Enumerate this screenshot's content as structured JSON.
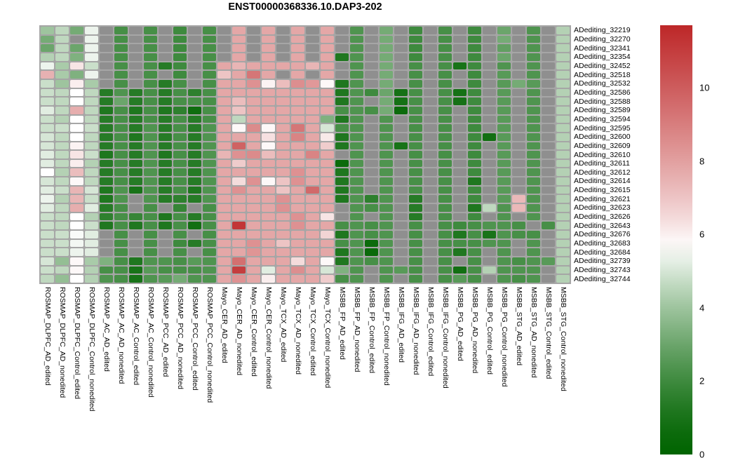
{
  "chart_data": {
    "type": "heatmap",
    "title": "ENST00000368336.10.DAP3-202",
    "rows": [
      "ADediting_32219",
      "ADediting_32270",
      "ADediting_32341",
      "ADediting_32354",
      "ADediting_32452",
      "ADediting_32518",
      "ADediting_32532",
      "ADediting_32586",
      "ADediting_32588",
      "ADediting_32589",
      "ADediting_32594",
      "ADediting_32595",
      "ADediting_32600",
      "ADediting_32609",
      "ADediting_32610",
      "ADediting_32611",
      "ADediting_32612",
      "ADediting_32614",
      "ADediting_32615",
      "ADediting_32621",
      "ADediting_32623",
      "ADediting_32626",
      "ADediting_32643",
      "ADediting_32676",
      "ADediting_32683",
      "ADediting_32684",
      "ADediting_32739",
      "ADediting_32743",
      "ADediting_32744"
    ],
    "columns": [
      "ROSMAP_DLPFC_AD_edited",
      "ROSMAP_DLPFC_AD_nonedited",
      "ROSMAP_DLPFC_Control_edited",
      "ROSMAP_DLPFC_Control_nonedited",
      "ROSMAP_AC_AD_edited",
      "ROSMAP_AC_AD_nonedited",
      "ROSMAP_AC_Control_edited",
      "ROSMAP_AC_Control_nonedited",
      "ROSMAP_PCC_AD_edited",
      "ROSMAP_PCC_AD_nonedited",
      "ROSMAP_PCC_Control_edited",
      "ROSMAP_PCC_Control_nonedited",
      "Mayo_CER_AD_edited",
      "Mayo_CER_AD_nonedited",
      "Mayo_CER_Control_edited",
      "Mayo_CER_Control_nonedited",
      "Mayo_TCX_AD_edited",
      "Mayo_TCX_AD_nonedited",
      "Mayo_TCX_Control_edited",
      "Mayo_TCX_Control_nonedited",
      "MSBB_FP_AD_edited",
      "MSBB_FP_AD_nonedited",
      "MSBB_FP_Control_edited",
      "MSBB_FP_Control_nonedited",
      "MSBB_IFG_AD_edited",
      "MSBB_IFG_AD_nonedited",
      "MSBB_IFG_Control_edited",
      "MSBB_IFG_Control_nonedited",
      "MSBB_PG_AD_edited",
      "MSBB_PG_AD_nonedited",
      "MSBB_PG_Control_edited",
      "MSBB_PG_Control_nonedited",
      "MSBB_STG_AD_edited",
      "MSBB_STG_AD_nonedited",
      "MSBB_STG_Control_edited",
      "MSBB_STG_Control_nonedited"
    ],
    "values": [
      [
        4.0,
        4.6,
        3.2,
        5.4,
        null,
        2.2,
        null,
        2.2,
        null,
        2.0,
        null,
        2.2,
        null,
        7.8,
        null,
        7.8,
        null,
        7.8,
        null,
        7.8,
        null,
        2.4,
        null,
        3.2,
        null,
        2.0,
        null,
        2.2,
        null,
        2.0,
        null,
        3.0,
        null,
        2.4,
        null,
        4.4
      ],
      [
        3.2,
        4.6,
        null,
        5.4,
        null,
        2.2,
        null,
        2.2,
        null,
        2.0,
        null,
        2.2,
        null,
        7.8,
        null,
        7.8,
        null,
        7.8,
        null,
        7.8,
        null,
        2.4,
        null,
        3.2,
        null,
        2.0,
        null,
        2.2,
        null,
        2.0,
        null,
        3.2,
        null,
        2.4,
        null,
        4.4
      ],
      [
        3.0,
        4.6,
        3.0,
        5.4,
        null,
        2.2,
        null,
        2.2,
        null,
        2.0,
        null,
        2.2,
        null,
        7.8,
        null,
        7.8,
        null,
        7.8,
        null,
        7.8,
        null,
        2.4,
        null,
        3.2,
        null,
        2.0,
        null,
        2.2,
        null,
        2.0,
        null,
        2.8,
        null,
        2.4,
        null,
        4.4
      ],
      [
        4.4,
        4.6,
        3.4,
        5.4,
        null,
        2.2,
        null,
        2.2,
        null,
        2.0,
        null,
        2.2,
        null,
        7.8,
        null,
        7.8,
        null,
        7.8,
        null,
        7.8,
        1.2,
        2.4,
        null,
        3.2,
        null,
        2.0,
        null,
        2.2,
        null,
        2.0,
        null,
        3.0,
        null,
        2.4,
        null,
        4.4
      ],
      [
        5.4,
        4.2,
        6.2,
        4.8,
        null,
        2.2,
        null,
        2.2,
        1.4,
        2.0,
        null,
        2.2,
        7.8,
        7.4,
        7.8,
        7.8,
        7.8,
        7.8,
        7.4,
        7.8,
        null,
        2.4,
        null,
        3.2,
        null,
        2.2,
        null,
        2.2,
        1.0,
        2.0,
        null,
        2.4,
        null,
        2.4,
        null,
        4.4
      ],
      [
        7.5,
        4.2,
        3.4,
        5.4,
        null,
        2.2,
        null,
        2.2,
        null,
        2.0,
        null,
        2.2,
        7.0,
        7.8,
        9.2,
        7.8,
        null,
        7.8,
        null,
        7.8,
        null,
        2.4,
        null,
        3.2,
        null,
        2.2,
        null,
        2.2,
        null,
        2.0,
        null,
        2.6,
        null,
        2.4,
        null,
        4.4
      ],
      [
        4.8,
        4.0,
        6.0,
        4.2,
        null,
        2.2,
        null,
        2.2,
        1.4,
        2.2,
        null,
        2.2,
        7.8,
        7.8,
        8.4,
        5.9,
        7.2,
        8.5,
        8.2,
        5.8,
        1.2,
        2.4,
        null,
        3.2,
        null,
        2.2,
        null,
        2.2,
        null,
        2.0,
        null,
        2.6,
        3.2,
        2.6,
        null,
        4.4
      ],
      [
        4.8,
        4.6,
        5.7,
        4.6,
        1.4,
        2.4,
        1.4,
        2.2,
        1.4,
        2.2,
        1.6,
        2.2,
        7.8,
        7.8,
        7.8,
        7.8,
        7.8,
        7.8,
        7.8,
        7.8,
        1.2,
        2.4,
        2.0,
        3.0,
        0.9,
        2.2,
        null,
        2.2,
        0.9,
        2.0,
        null,
        2.6,
        null,
        2.4,
        null,
        4.4
      ],
      [
        4.8,
        4.6,
        5.7,
        4.6,
        1.4,
        3.0,
        1.4,
        2.2,
        1.4,
        2.2,
        2.2,
        2.2,
        7.8,
        7.2,
        7.8,
        7.8,
        7.8,
        7.8,
        7.8,
        7.8,
        1.2,
        2.4,
        null,
        3.2,
        0.9,
        2.2,
        null,
        2.2,
        0.9,
        2.0,
        null,
        2.6,
        null,
        2.4,
        null,
        4.4
      ],
      [
        5.2,
        4.6,
        7.6,
        4.6,
        1.2,
        2.2,
        1.2,
        2.2,
        1.2,
        1.6,
        0.7,
        2.2,
        7.8,
        7.0,
        7.8,
        7.8,
        7.8,
        7.8,
        7.8,
        7.8,
        2.2,
        2.4,
        2.2,
        3.2,
        0.6,
        2.2,
        null,
        2.2,
        null,
        2.0,
        null,
        2.6,
        null,
        2.4,
        null,
        4.4
      ],
      [
        4.8,
        4.4,
        5.7,
        4.6,
        1.4,
        2.2,
        1.4,
        2.2,
        1.4,
        2.2,
        1.4,
        2.2,
        7.8,
        4.6,
        7.8,
        7.8,
        7.8,
        7.8,
        7.8,
        3.4,
        1.2,
        2.4,
        null,
        2.4,
        null,
        2.2,
        null,
        2.2,
        null,
        2.0,
        null,
        2.6,
        null,
        2.4,
        null,
        4.4
      ],
      [
        4.8,
        4.8,
        5.7,
        4.8,
        1.4,
        2.2,
        1.4,
        2.4,
        1.4,
        2.2,
        1.4,
        2.4,
        7.8,
        5.8,
        8.6,
        5.8,
        7.8,
        9.2,
        7.8,
        5.0,
        2.2,
        2.4,
        null,
        2.4,
        null,
        2.2,
        null,
        2.2,
        null,
        2.0,
        null,
        2.6,
        null,
        2.4,
        null,
        4.4
      ],
      [
        5.0,
        4.6,
        5.7,
        4.6,
        1.4,
        2.2,
        1.2,
        2.4,
        1.4,
        2.2,
        1.4,
        2.4,
        7.8,
        7.8,
        7.8,
        6.3,
        7.8,
        8.8,
        7.8,
        6.1,
        1.2,
        2.4,
        null,
        2.4,
        null,
        2.2,
        null,
        2.2,
        null,
        2.0,
        0.8,
        2.6,
        null,
        2.4,
        null,
        4.4
      ],
      [
        5.0,
        4.6,
        5.9,
        4.6,
        1.4,
        2.2,
        1.4,
        2.4,
        1.4,
        2.2,
        1.4,
        2.4,
        7.8,
        9.8,
        7.8,
        5.8,
        7.8,
        7.8,
        7.8,
        6.8,
        1.2,
        2.4,
        null,
        2.4,
        1.0,
        2.2,
        null,
        2.2,
        null,
        2.0,
        null,
        2.6,
        null,
        2.4,
        null,
        4.4
      ],
      [
        5.2,
        4.6,
        6.2,
        4.8,
        1.2,
        2.2,
        1.4,
        2.4,
        1.2,
        2.2,
        1.4,
        2.4,
        7.4,
        8.4,
        8.6,
        7.2,
        7.8,
        7.8,
        8.8,
        7.8,
        null,
        2.4,
        null,
        2.4,
        null,
        2.2,
        null,
        2.2,
        null,
        2.0,
        null,
        2.6,
        null,
        2.4,
        null,
        4.4
      ],
      [
        5.2,
        4.6,
        6.0,
        4.4,
        1.4,
        2.2,
        1.4,
        2.4,
        1.4,
        2.2,
        1.4,
        2.4,
        7.8,
        6.8,
        7.8,
        7.8,
        7.8,
        7.8,
        7.8,
        7.8,
        0.6,
        2.4,
        null,
        2.4,
        null,
        2.2,
        null,
        2.2,
        null,
        2.0,
        null,
        2.6,
        null,
        2.4,
        null,
        4.4
      ],
      [
        5.7,
        4.4,
        7.2,
        4.6,
        1.4,
        2.2,
        1.4,
        2.4,
        1.4,
        2.2,
        1.4,
        2.4,
        7.8,
        7.8,
        7.8,
        7.8,
        7.8,
        8.4,
        7.8,
        7.8,
        1.2,
        2.4,
        null,
        2.4,
        null,
        2.2,
        null,
        2.2,
        null,
        2.0,
        null,
        2.6,
        null,
        2.4,
        null,
        4.4
      ],
      [
        5.0,
        4.6,
        5.8,
        4.6,
        1.4,
        2.2,
        1.4,
        2.4,
        1.4,
        2.2,
        1.4,
        2.4,
        7.8,
        6.4,
        8.4,
        5.8,
        7.0,
        8.4,
        7.8,
        7.8,
        1.2,
        2.4,
        null,
        2.4,
        null,
        2.2,
        null,
        2.2,
        null,
        1.2,
        null,
        2.6,
        null,
        2.4,
        null,
        4.4
      ],
      [
        5.2,
        4.8,
        7.4,
        5.0,
        1.2,
        2.4,
        1.0,
        2.4,
        1.4,
        2.2,
        1.2,
        2.4,
        7.8,
        8.4,
        7.8,
        7.8,
        7.0,
        7.8,
        9.6,
        7.8,
        1.2,
        2.4,
        null,
        2.4,
        null,
        2.2,
        null,
        2.2,
        null,
        2.0,
        null,
        2.6,
        null,
        2.4,
        null,
        4.4
      ],
      [
        5.4,
        4.4,
        7.4,
        4.8,
        1.2,
        2.4,
        null,
        2.4,
        1.4,
        1.6,
        1.4,
        2.4,
        7.8,
        7.8,
        7.8,
        7.8,
        8.4,
        7.8,
        7.8,
        7.8,
        1.2,
        2.4,
        1.6,
        2.4,
        null,
        1.4,
        null,
        2.2,
        null,
        2.0,
        null,
        2.6,
        7.3,
        2.4,
        null,
        4.4
      ],
      [
        5.2,
        4.6,
        7.6,
        5.2,
        1.4,
        2.2,
        null,
        2.2,
        null,
        1.8,
        null,
        2.2,
        7.8,
        7.8,
        7.8,
        7.8,
        8.4,
        7.8,
        7.8,
        7.8,
        null,
        2.4,
        2.2,
        2.4,
        null,
        1.4,
        null,
        2.2,
        null,
        1.2,
        4.6,
        2.4,
        7.3,
        2.4,
        null,
        4.4
      ],
      [
        4.8,
        4.6,
        5.7,
        4.4,
        1.6,
        2.2,
        1.8,
        2.2,
        1.2,
        2.2,
        1.4,
        2.2,
        7.8,
        7.8,
        7.8,
        7.8,
        7.8,
        8.4,
        7.8,
        6.2,
        null,
        2.4,
        null,
        2.4,
        null,
        1.4,
        null,
        2.2,
        null,
        2.0,
        null,
        2.4,
        null,
        2.4,
        null,
        4.4
      ],
      [
        4.8,
        4.6,
        5.7,
        4.8,
        1.2,
        2.2,
        1.2,
        2.2,
        1.2,
        2.2,
        0.8,
        2.2,
        7.8,
        11.2,
        7.8,
        7.8,
        7.8,
        8.4,
        7.8,
        7.8,
        2.2,
        2.4,
        2.2,
        2.4,
        null,
        2.2,
        null,
        2.2,
        2.0,
        2.2,
        2.4,
        2.4,
        2.2,
        null,
        2.2,
        4.4
      ],
      [
        4.8,
        4.8,
        5.6,
        5.2,
        null,
        2.2,
        null,
        2.2,
        null,
        2.2,
        null,
        2.2,
        7.8,
        7.8,
        7.8,
        7.8,
        7.8,
        7.8,
        7.8,
        6.6,
        1.2,
        2.4,
        2.2,
        2.4,
        null,
        2.2,
        null,
        2.2,
        1.2,
        2.2,
        1.0,
        2.4,
        2.2,
        2.2,
        null,
        4.4
      ],
      [
        4.8,
        4.8,
        5.5,
        5.2,
        null,
        2.2,
        null,
        2.2,
        null,
        2.0,
        1.4,
        2.2,
        7.8,
        7.8,
        8.4,
        7.8,
        7.0,
        7.8,
        7.8,
        7.8,
        2.2,
        2.4,
        0.6,
        2.4,
        null,
        2.2,
        null,
        2.2,
        2.2,
        2.2,
        2.4,
        2.4,
        null,
        2.4,
        null,
        4.4
      ],
      [
        4.8,
        4.8,
        5.4,
        5.2,
        null,
        2.2,
        null,
        2.2,
        null,
        2.2,
        null,
        2.2,
        7.8,
        7.8,
        8.3,
        7.8,
        7.8,
        7.8,
        7.8,
        7.8,
        1.2,
        2.4,
        0.5,
        2.4,
        null,
        2.2,
        null,
        2.2,
        1.2,
        2.2,
        null,
        2.4,
        null,
        2.4,
        null,
        4.4
      ],
      [
        5.0,
        3.8,
        5.8,
        4.2,
        3.4,
        2.2,
        1.2,
        2.4,
        2.4,
        2.2,
        2.6,
        2.4,
        7.8,
        9.4,
        7.8,
        7.8,
        7.8,
        6.4,
        7.8,
        5.8,
        1.2,
        2.4,
        2.2,
        2.4,
        null,
        2.2,
        null,
        2.2,
        null,
        2.2,
        null,
        2.4,
        2.2,
        2.4,
        2.6,
        4.4
      ],
      [
        4.8,
        4.6,
        5.8,
        4.4,
        2.2,
        2.2,
        1.0,
        2.6,
        2.2,
        2.2,
        2.2,
        2.4,
        7.8,
        11.0,
        7.8,
        5.2,
        7.8,
        8.5,
        7.8,
        5.0,
        3.4,
        2.4,
        null,
        2.4,
        2.6,
        2.2,
        null,
        2.2,
        0.8,
        2.2,
        4.4,
        2.4,
        2.4,
        2.4,
        null,
        4.4
      ],
      [
        4.6,
        3.8,
        5.7,
        4.4,
        2.4,
        2.2,
        1.0,
        2.4,
        2.6,
        3.2,
        2.4,
        2.4,
        7.8,
        8.4,
        7.8,
        6.0,
        7.8,
        7.8,
        7.8,
        6.8,
        2.2,
        2.4,
        null,
        2.4,
        null,
        2.2,
        null,
        2.2,
        2.6,
        2.2,
        null,
        2.4,
        2.2,
        2.4,
        null,
        4.4
      ]
    ],
    "colorscale": {
      "min": 0,
      "max": 11.7,
      "mid_value": 5.7,
      "ticks": [
        "0",
        "2",
        "4",
        "6",
        "8",
        "10"
      ],
      "low": "#006400",
      "mid": "#ffffff",
      "high": "#bd2728"
    },
    "na_color": "#8f8f8f",
    "panel_bg": "#a6a6a6",
    "legend_position": "right",
    "grid": false
  }
}
